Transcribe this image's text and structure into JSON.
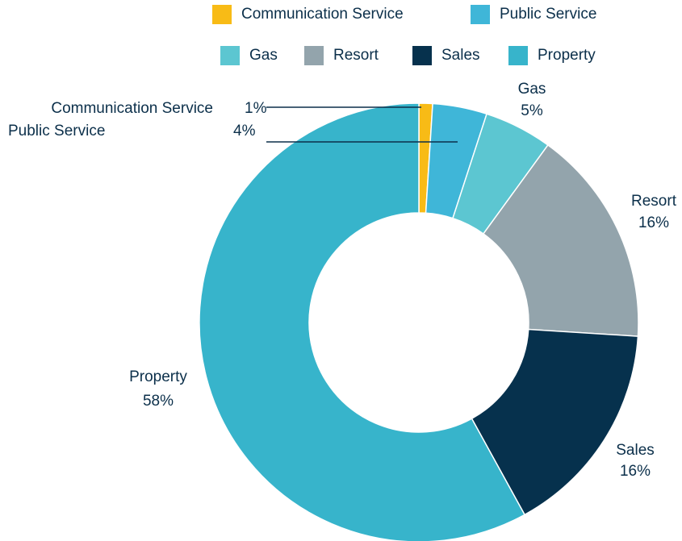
{
  "chart_data": {
    "type": "donut",
    "categories": [
      "Communication Service",
      "Public Service",
      "Gas",
      "Resort",
      "Sales",
      "Property"
    ],
    "values": [
      1,
      4,
      5,
      16,
      16,
      58
    ],
    "value_labels": [
      "1%",
      "4%",
      "5%",
      "16%",
      "16%",
      "58%"
    ],
    "colors": [
      "#f8bb16",
      "#3fb6d8",
      "#5cc6d1",
      "#93a4ac",
      "#06314d",
      "#37b4cb"
    ],
    "legend": "top"
  }
}
